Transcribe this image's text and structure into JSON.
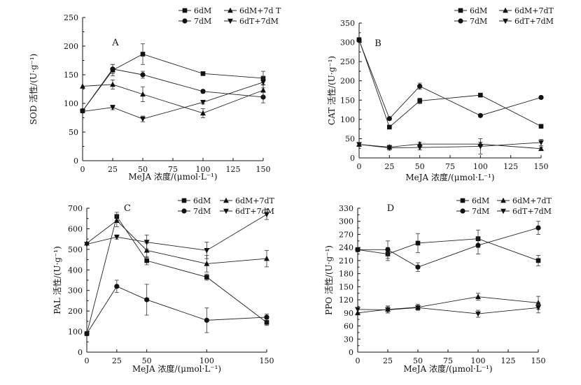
{
  "chart_data": [
    {
      "type": "line",
      "panel_label": "A",
      "x": [
        0,
        25,
        50,
        100,
        150
      ],
      "xticks": [
        0,
        25,
        50,
        75,
        100,
        125,
        150
      ],
      "xlim": [
        0,
        150
      ],
      "yticks": [
        0,
        50,
        100,
        150,
        200,
        250
      ],
      "ylim": [
        0,
        250
      ],
      "xlabel": "MeJA 浓度/(μmol·L⁻¹)",
      "ylabel": "SOD 活性/(U·g⁻¹)",
      "legend_position": "top-right",
      "series": [
        {
          "name": "6dM",
          "marker": "square",
          "values": [
            87,
            158,
            186,
            152,
            144
          ],
          "errors": [
            0,
            10,
            18,
            3,
            12
          ]
        },
        {
          "name": "7dM",
          "marker": "circle",
          "values": [
            87,
            160,
            150,
            121,
            111
          ],
          "errors": [
            0,
            8,
            6,
            3,
            10
          ]
        },
        {
          "name": "6dM+7d T",
          "marker": "triangle-up",
          "values": [
            130,
            133,
            116,
            83,
            123
          ],
          "errors": [
            0,
            8,
            13,
            8,
            10
          ]
        },
        {
          "name": "6dT+7dM",
          "marker": "triangle-down",
          "values": [
            86,
            93,
            73,
            102,
            137
          ],
          "errors": [
            0,
            4,
            5,
            3,
            10
          ]
        }
      ]
    },
    {
      "type": "line",
      "panel_label": "B",
      "x": [
        0,
        25,
        50,
        100,
        150
      ],
      "xticks": [
        0,
        25,
        50,
        75,
        100,
        125,
        150
      ],
      "xlim": [
        0,
        150
      ],
      "yticks": [
        0,
        50,
        100,
        150,
        200,
        250,
        300,
        350
      ],
      "ylim": [
        0,
        350
      ],
      "xlabel": "MeJA 浓度/(μmol·L⁻¹)",
      "ylabel": "CAT 活性/(U·g⁻¹)",
      "legend_position": "top-right",
      "series": [
        {
          "name": "6dM",
          "marker": "square",
          "values": [
            307,
            80,
            148,
            163,
            82
          ],
          "errors": [
            0,
            4,
            7,
            3,
            4
          ]
        },
        {
          "name": "7dM",
          "marker": "circle",
          "values": [
            305,
            102,
            186,
            110,
            157
          ],
          "errors": [
            0,
            4,
            8,
            3,
            3
          ]
        },
        {
          "name": "6dM+7dT",
          "marker": "triangle-up",
          "values": [
            35,
            28,
            36,
            36,
            24
          ],
          "errors": [
            0,
            5,
            5,
            5,
            4
          ]
        },
        {
          "name": "6dT+7dM",
          "marker": "triangle-down",
          "values": [
            35,
            26,
            27,
            30,
            40
          ],
          "errors": [
            0,
            6,
            6,
            20,
            8
          ]
        }
      ]
    },
    {
      "type": "line",
      "panel_label": "C",
      "x": [
        0,
        25,
        50,
        100,
        150
      ],
      "xticks": [
        0,
        25,
        50,
        100,
        150
      ],
      "xlim": [
        0,
        150
      ],
      "yticks": [
        0,
        100,
        200,
        300,
        400,
        500,
        600,
        700
      ],
      "ylim": [
        0,
        700
      ],
      "xlabel": "MeJA 浓度/(μmol·L⁻¹)",
      "ylabel": "PAL 活性/(U·g⁻¹)",
      "legend_position": "top-right",
      "series": [
        {
          "name": "6dM",
          "marker": "square",
          "values": [
            90,
            660,
            445,
            365,
            145
          ],
          "errors": [
            0,
            20,
            20,
            15,
            15
          ]
        },
        {
          "name": "7dM",
          "marker": "circle",
          "values": [
            90,
            320,
            255,
            155,
            170
          ],
          "errors": [
            0,
            30,
            75,
            60,
            15
          ]
        },
        {
          "name": "6dM+7dT",
          "marker": "triangle-up",
          "values": [
            530,
            640,
            495,
            430,
            455
          ],
          "errors": [
            0,
            30,
            35,
            40,
            40
          ]
        },
        {
          "name": "6dT+7dM",
          "marker": "triangle-down",
          "values": [
            525,
            560,
            535,
            495,
            670
          ],
          "errors": [
            0,
            10,
            35,
            40,
            25
          ]
        }
      ]
    },
    {
      "type": "line",
      "panel_label": "D",
      "x": [
        0,
        25,
        50,
        100,
        150
      ],
      "xticks": [
        0,
        25,
        50,
        75,
        100,
        125,
        150
      ],
      "xlim": [
        0,
        150
      ],
      "yticks": [
        0,
        30,
        60,
        90,
        120,
        150,
        180,
        210,
        240,
        270,
        300,
        330
      ],
      "ylim": [
        0,
        330
      ],
      "xlabel": "MeJA 浓度/(μmol·L⁻¹)",
      "ylabel": "PPO 活性/(U·g⁻¹)",
      "legend_position": "top-right",
      "series": [
        {
          "name": "6dM",
          "marker": "square",
          "values": [
            235,
            225,
            250,
            260,
            210
          ],
          "errors": [
            0,
            15,
            22,
            20,
            12
          ]
        },
        {
          "name": "7dM",
          "marker": "circle",
          "values": [
            235,
            235,
            195,
            245,
            285
          ],
          "errors": [
            0,
            20,
            10,
            20,
            15
          ]
        },
        {
          "name": "6dM+7dT",
          "marker": "triangle-up",
          "values": [
            90,
            98,
            103,
            127,
            113
          ],
          "errors": [
            0,
            8,
            7,
            8,
            15
          ]
        },
        {
          "name": "6dT+7dM",
          "marker": "triangle-down",
          "values": [
            98,
            97,
            102,
            88,
            102
          ],
          "errors": [
            0,
            7,
            5,
            8,
            12
          ]
        }
      ]
    }
  ]
}
